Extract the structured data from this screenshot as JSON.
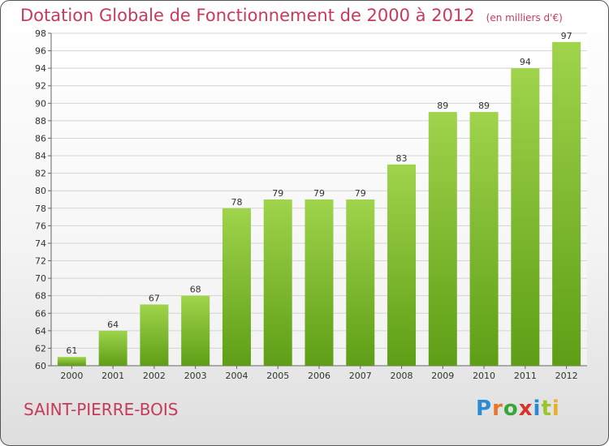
{
  "chart_data": {
    "type": "bar",
    "title": "Dotation Globale de Fonctionnement de 2000 à 2012",
    "unit_note": "(en milliers d'€)",
    "categories": [
      "2000",
      "2001",
      "2002",
      "2003",
      "2004",
      "2005",
      "2006",
      "2007",
      "2008",
      "2009",
      "2010",
      "2011",
      "2012"
    ],
    "values": [
      61,
      64,
      67,
      68,
      78,
      79,
      79,
      79,
      83,
      89,
      89,
      94,
      97
    ],
    "ylim": [
      60,
      98
    ],
    "ytick_step": 2,
    "grid": true,
    "xlabel": "",
    "ylabel": ""
  },
  "commune": "SAINT-PIERRE-BOIS",
  "logo": {
    "letters": [
      "P",
      "r",
      "o",
      "x",
      "i",
      "t",
      "i"
    ],
    "colors": [
      "#2a8ad6",
      "#e8762a",
      "#3aa63a",
      "#d6332a",
      "#2a8ad6",
      "#9ac52e",
      "#e8b02a"
    ]
  }
}
